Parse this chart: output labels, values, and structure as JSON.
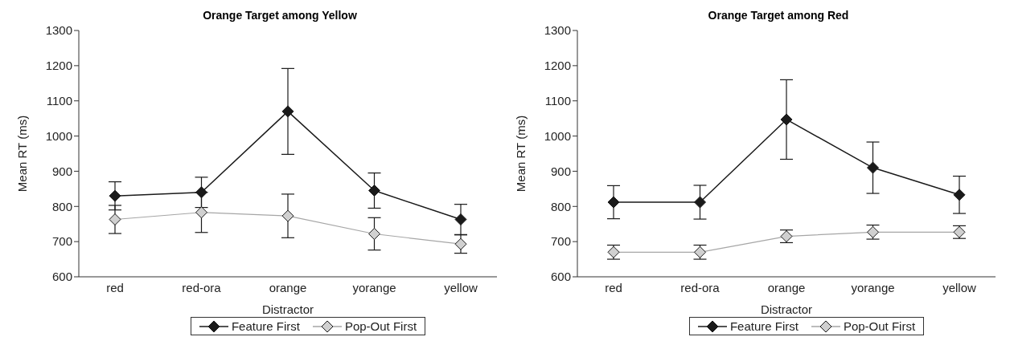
{
  "chart_data": [
    {
      "type": "line",
      "title": "Orange Target among Yellow",
      "xlabel": "Distractor",
      "ylabel": "Mean RT (ms)",
      "categories": [
        "red",
        "red-ora",
        "orange",
        "yorange",
        "yellow"
      ],
      "ylim": [
        600,
        1300
      ],
      "yticks": [
        600,
        700,
        800,
        900,
        1000,
        1100,
        1200,
        1300
      ],
      "grid": false,
      "legend": "bottom",
      "marker": "diamond",
      "series": [
        {
          "name": "Feature First",
          "color": "#1a1a1a",
          "values": [
            830,
            840,
            1070,
            845,
            763
          ],
          "errors": [
            40,
            43,
            122,
            50,
            43
          ]
        },
        {
          "name": "Pop-Out First",
          "color": "#a6a6a6",
          "values": [
            763,
            783,
            773,
            722,
            693
          ],
          "errors": [
            40,
            57,
            62,
            46,
            26
          ]
        }
      ]
    },
    {
      "type": "line",
      "title": "Orange Target among Red",
      "xlabel": "Distractor",
      "ylabel": "Mean RT (ms)",
      "categories": [
        "red",
        "red-ora",
        "orange",
        "yorange",
        "yellow"
      ],
      "ylim": [
        600,
        1300
      ],
      "yticks": [
        600,
        700,
        800,
        900,
        1000,
        1100,
        1200,
        1300
      ],
      "grid": false,
      "legend": "bottom",
      "marker": "diamond",
      "series": [
        {
          "name": "Feature First",
          "color": "#1a1a1a",
          "values": [
            812,
            812,
            1047,
            910,
            833
          ],
          "errors": [
            47,
            48,
            113,
            73,
            53
          ]
        },
        {
          "name": "Pop-Out First",
          "color": "#a6a6a6",
          "values": [
            670,
            670,
            715,
            727,
            727
          ],
          "errors": [
            20,
            20,
            18,
            20,
            18
          ]
        }
      ]
    }
  ]
}
